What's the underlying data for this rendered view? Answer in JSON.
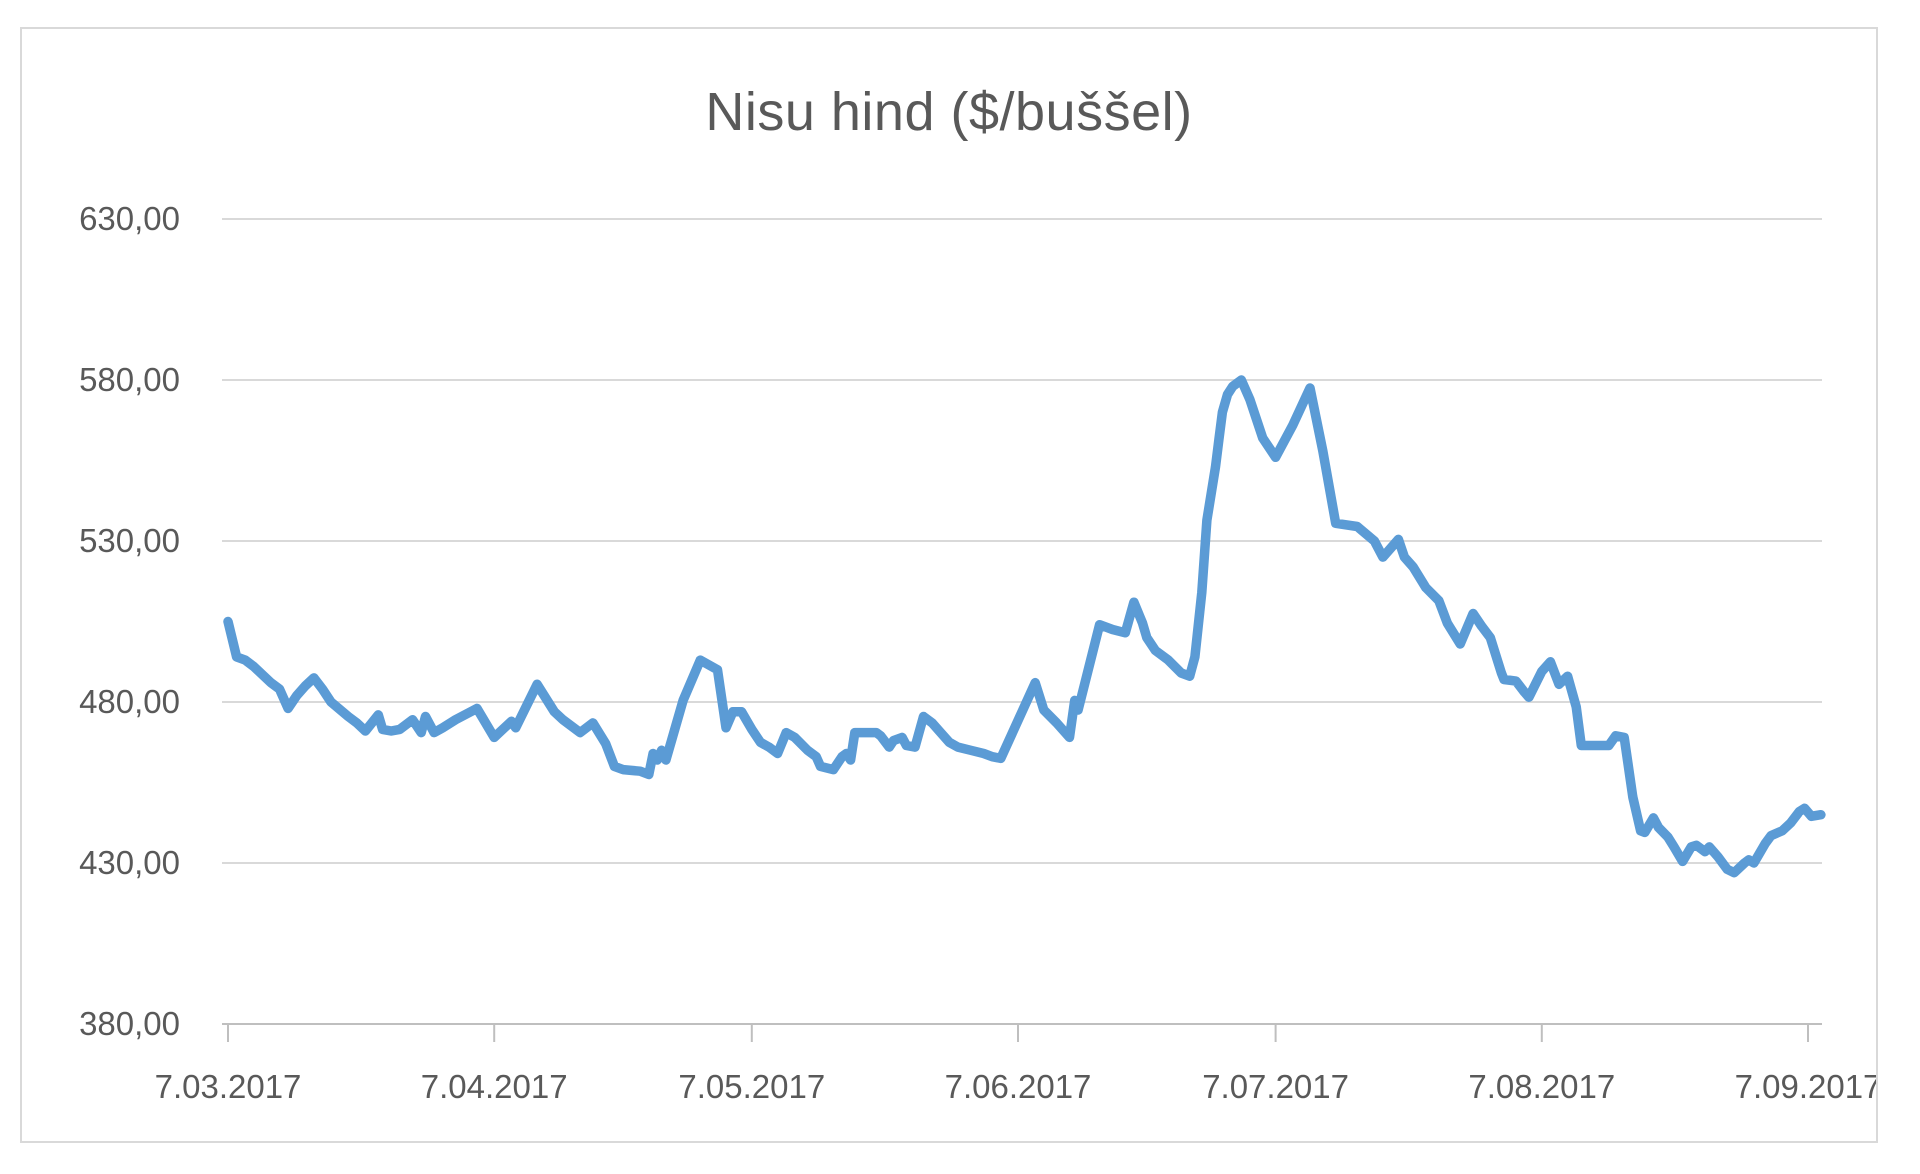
{
  "chart": {
    "title": "Nisu hind ($/buššel)"
  },
  "colors": {
    "line": "#5B9BD5",
    "gridline": "#D9D9D9",
    "axis_line": "#BFBFBF",
    "text": "#595959",
    "border": "#D9D9D9",
    "background": "#FFFFFF"
  },
  "chart_data": {
    "type": "line",
    "title": "Nisu hind ($/buššel)",
    "xlabel": "",
    "ylabel": "",
    "grid": true,
    "legend": false,
    "y_axis": {
      "ylim": [
        380,
        630
      ],
      "tick_values": [
        380,
        430,
        480,
        530,
        580,
        630
      ],
      "tick_labels": [
        "380,00",
        "430,00",
        "480,00",
        "530,00",
        "580,00",
        "630,00"
      ],
      "decimal_separator": ","
    },
    "x_axis": {
      "unit": "date",
      "start_date": "7.03.2017",
      "end_date": "7.09.2017",
      "tick_labels": [
        "7.03.2017",
        "7.04.2017",
        "7.05.2017",
        "7.06.2017",
        "7.07.2017",
        "7.08.2017",
        "7.09.2017"
      ],
      "tick_day_offsets": [
        0,
        31,
        61,
        92,
        122,
        153,
        184
      ],
      "range_days": [
        0,
        185.6
      ]
    },
    "series": [
      {
        "name": "Nisu hind",
        "color": "#5B9BD5",
        "points": [
          [
            0,
            505
          ],
          [
            1,
            494
          ],
          [
            2,
            493
          ],
          [
            3,
            491
          ],
          [
            5,
            486
          ],
          [
            6,
            484
          ],
          [
            7,
            478
          ],
          [
            8,
            482
          ],
          [
            9,
            485
          ],
          [
            10,
            487.5
          ],
          [
            11,
            484
          ],
          [
            12,
            480
          ],
          [
            14,
            475.5
          ],
          [
            15,
            473.5
          ],
          [
            16,
            471
          ],
          [
            17.5,
            476
          ],
          [
            18,
            471.5
          ],
          [
            19,
            471
          ],
          [
            20,
            471.5
          ],
          [
            21.5,
            474.5
          ],
          [
            22.5,
            470.5
          ],
          [
            23,
            475.5
          ],
          [
            24,
            470.5
          ],
          [
            25,
            472
          ],
          [
            26.5,
            474.5
          ],
          [
            29,
            478
          ],
          [
            31,
            469
          ],
          [
            33,
            474
          ],
          [
            33.5,
            472
          ],
          [
            36,
            485.5
          ],
          [
            38,
            477
          ],
          [
            39,
            474.5
          ],
          [
            41,
            470.5
          ],
          [
            42.5,
            473.5
          ],
          [
            44,
            467
          ],
          [
            45,
            460
          ],
          [
            46,
            459
          ],
          [
            48,
            458.5
          ],
          [
            49,
            457.5
          ],
          [
            49.5,
            464
          ],
          [
            50,
            462
          ],
          [
            50.5,
            465
          ],
          [
            51,
            462
          ],
          [
            53,
            480.5
          ],
          [
            55,
            493
          ],
          [
            57,
            490
          ],
          [
            58,
            472
          ],
          [
            58.8,
            477
          ],
          [
            59.8,
            477
          ],
          [
            61,
            471.5
          ],
          [
            62,
            467.5
          ],
          [
            63,
            466
          ],
          [
            64,
            464
          ],
          [
            65,
            470.5
          ],
          [
            66,
            469
          ],
          [
            67.5,
            465
          ],
          [
            68.5,
            463
          ],
          [
            69,
            460
          ],
          [
            70.5,
            459
          ],
          [
            71.5,
            463
          ],
          [
            72,
            464
          ],
          [
            72.5,
            462
          ],
          [
            73,
            470.5
          ],
          [
            75.5,
            470.5
          ],
          [
            76,
            469.5
          ],
          [
            77,
            466
          ],
          [
            77.5,
            468
          ],
          [
            78.5,
            469
          ],
          [
            79,
            466.5
          ],
          [
            80,
            466
          ],
          [
            81,
            475.5
          ],
          [
            82,
            473.5
          ],
          [
            83,
            470.5
          ],
          [
            84,
            467.5
          ],
          [
            85,
            466
          ],
          [
            86.5,
            465
          ],
          [
            88,
            464
          ],
          [
            89,
            463
          ],
          [
            90,
            462.5
          ],
          [
            94,
            486
          ],
          [
            95,
            477.5
          ],
          [
            96.5,
            473.5
          ],
          [
            98,
            469
          ],
          [
            98.6,
            480.5
          ],
          [
            99,
            477.5
          ],
          [
            101.5,
            504
          ],
          [
            103,
            502.5
          ],
          [
            104.5,
            501.5
          ],
          [
            105.5,
            511
          ],
          [
            106.5,
            504.5
          ],
          [
            107,
            500
          ],
          [
            108,
            496
          ],
          [
            109.5,
            493
          ],
          [
            111,
            489
          ],
          [
            112,
            488
          ],
          [
            112.6,
            494
          ],
          [
            113.4,
            514
          ],
          [
            114,
            536.5
          ],
          [
            115,
            553
          ],
          [
            115.4,
            561.5
          ],
          [
            115.8,
            570
          ],
          [
            116.4,
            575.5
          ],
          [
            117,
            578
          ],
          [
            118,
            580
          ],
          [
            119,
            574
          ],
          [
            120.5,
            562
          ],
          [
            122,
            556
          ],
          [
            124,
            566
          ],
          [
            126,
            577.5
          ],
          [
            127.5,
            558
          ],
          [
            129,
            535.5
          ],
          [
            131.5,
            534.5
          ],
          [
            133.5,
            530
          ],
          [
            134.5,
            525
          ],
          [
            136.3,
            530.5
          ],
          [
            137,
            525
          ],
          [
            138,
            522
          ],
          [
            139.5,
            515.5
          ],
          [
            141,
            511.5
          ],
          [
            142,
            504.5
          ],
          [
            143.5,
            498
          ],
          [
            145,
            507.5
          ],
          [
            146,
            503.5
          ],
          [
            147,
            500
          ],
          [
            148.3,
            489
          ],
          [
            148.6,
            487
          ],
          [
            150,
            486.5
          ],
          [
            151,
            483
          ],
          [
            151.5,
            481.5
          ],
          [
            153,
            489.5
          ],
          [
            154,
            492.5
          ],
          [
            155,
            485.5
          ],
          [
            156,
            488
          ],
          [
            157,
            478.5
          ],
          [
            157.6,
            466.5
          ],
          [
            159,
            466.5
          ],
          [
            160.8,
            466.5
          ],
          [
            161.6,
            469.5
          ],
          [
            162.6,
            469
          ],
          [
            163.6,
            450.5
          ],
          [
            164.5,
            440
          ],
          [
            165,
            439.5
          ],
          [
            166,
            444
          ],
          [
            166.6,
            441
          ],
          [
            167.7,
            438
          ],
          [
            168.4,
            435
          ],
          [
            169.4,
            430.5
          ],
          [
            170.4,
            435
          ],
          [
            171,
            435.5
          ],
          [
            172,
            433.5
          ],
          [
            172.5,
            435
          ],
          [
            173.5,
            432
          ],
          [
            174.6,
            428
          ],
          [
            175.4,
            427
          ],
          [
            176.6,
            430
          ],
          [
            177.1,
            431
          ],
          [
            177.7,
            430
          ],
          [
            179,
            436
          ],
          [
            179.7,
            438.5
          ],
          [
            181,
            440
          ],
          [
            182,
            442.5
          ],
          [
            183,
            446
          ],
          [
            183.6,
            447
          ],
          [
            184.4,
            444.5
          ],
          [
            185.5,
            445
          ]
        ]
      }
    ]
  }
}
